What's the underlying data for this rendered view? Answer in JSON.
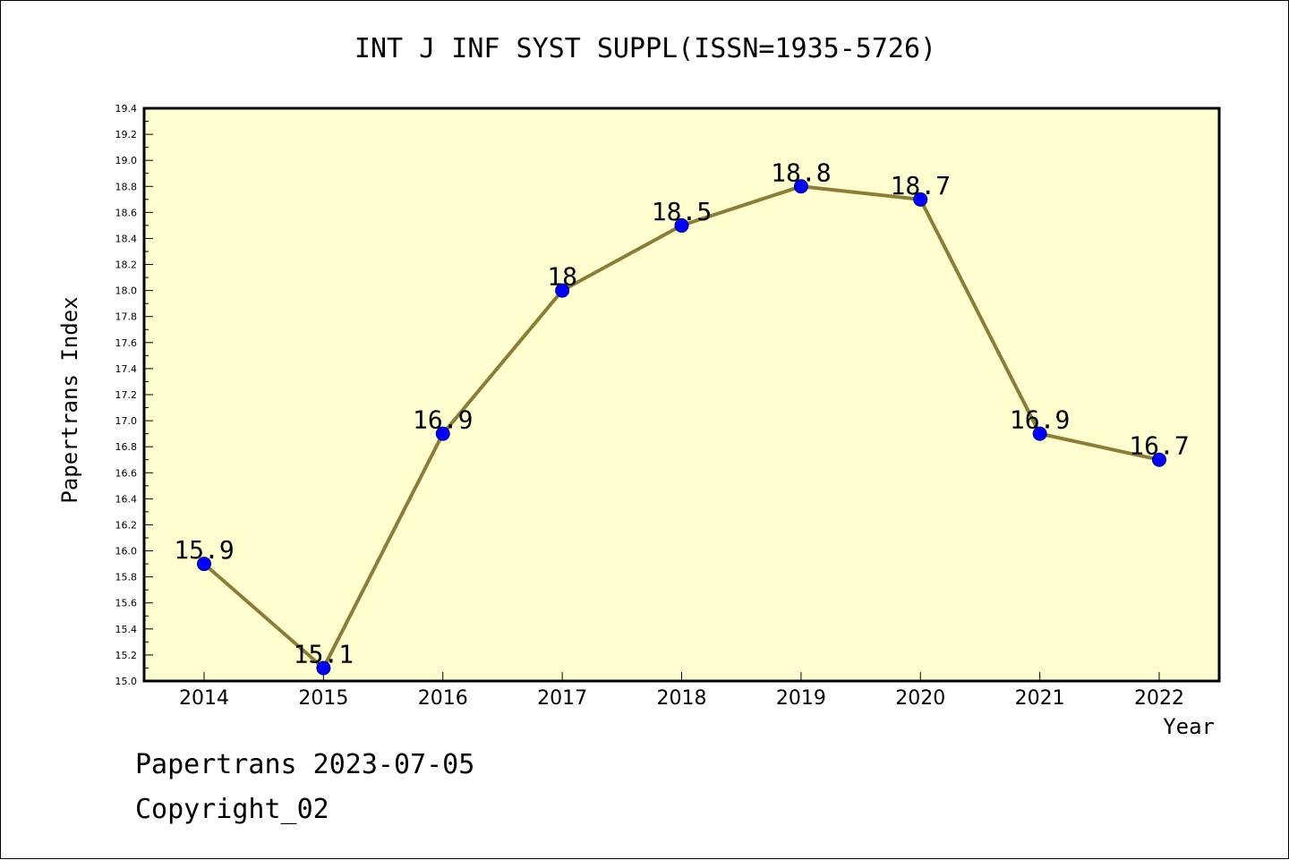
{
  "chart_data": {
    "type": "line",
    "title": "INT J INF SYST SUPPL(ISSN=1935-5726)",
    "xlabel": "Year",
    "ylabel": "Papertrans Index",
    "categories": [
      "2014",
      "2015",
      "2016",
      "2017",
      "2018",
      "2019",
      "2020",
      "2021",
      "2022"
    ],
    "series": [
      {
        "values": [
          15.9,
          15.1,
          16.9,
          18.0,
          18.5,
          18.8,
          18.7,
          16.9,
          16.7
        ],
        "data_labels": [
          "15.9",
          "15.1",
          "16.9",
          "18",
          "18.5",
          "18.8",
          "18.7",
          "16.9",
          "16.7"
        ]
      }
    ],
    "ylim": [
      15.0,
      19.4
    ],
    "yticks": [
      "15.0",
      "15.2",
      "15.4",
      "15.6",
      "15.8",
      "16.0",
      "16.2",
      "16.4",
      "16.6",
      "16.8",
      "17.0",
      "17.2",
      "17.4",
      "17.6",
      "17.8",
      "18.0",
      "18.2",
      "18.4",
      "18.6",
      "18.8",
      "19.0",
      "19.2",
      "19.4"
    ],
    "grid": false,
    "legend": "none"
  },
  "footer": {
    "date_line": "Papertrans 2023-07-05",
    "copyright_line": "Copyright_02"
  },
  "colors": {
    "plot_background": "#ffffd0",
    "line": "#8b7d35",
    "marker": "#0000ff",
    "marker_edge": "#000080"
  }
}
